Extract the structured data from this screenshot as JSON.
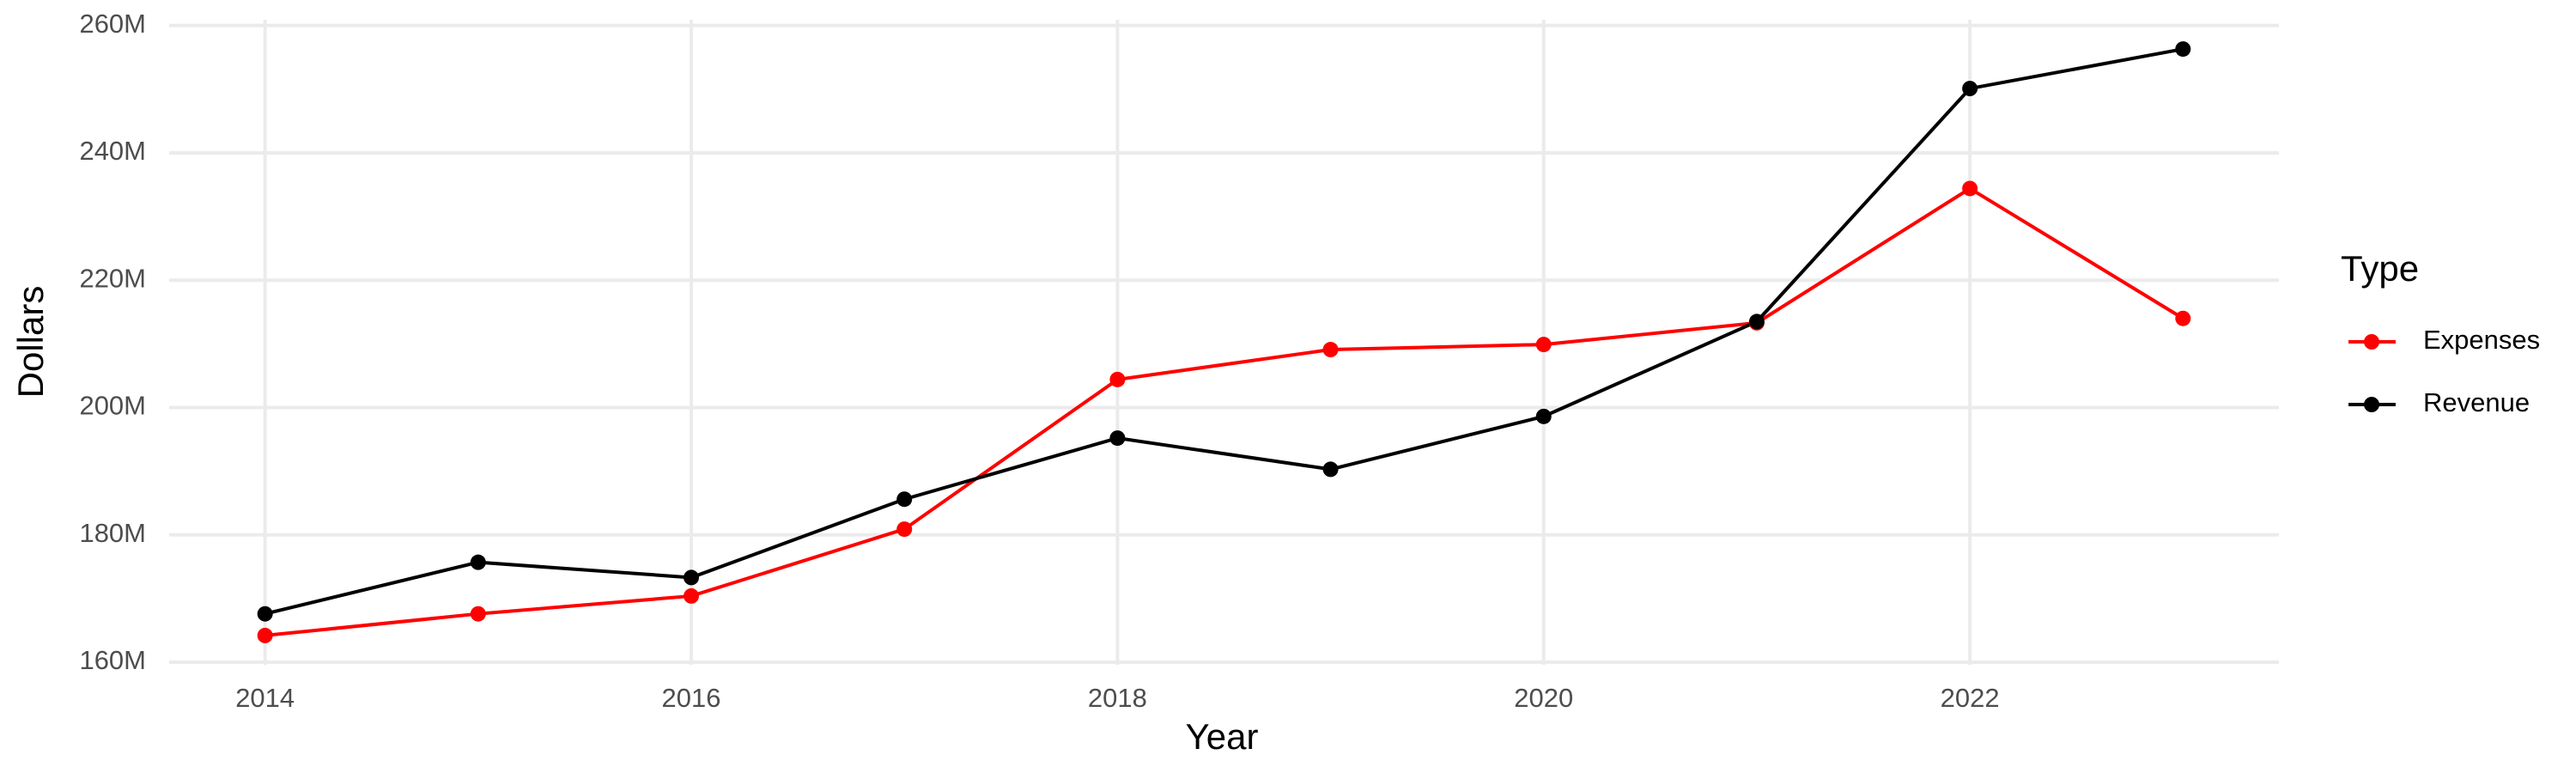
{
  "chart_data": {
    "type": "line",
    "x_label": "Year",
    "y_label": "Dollars",
    "x": [
      2014,
      2015,
      2016,
      2017,
      2018,
      2019,
      2020,
      2021,
      2022,
      2023
    ],
    "series": [
      {
        "name": "Expenses",
        "color": "#ff0000",
        "values": [
          164200000,
          167600000,
          170400000,
          180900000,
          204400000,
          209100000,
          209900000,
          213300000,
          234400000,
          214000000
        ]
      },
      {
        "name": "Revenue",
        "color": "#000000",
        "values": [
          167600000,
          175700000,
          173300000,
          185600000,
          195200000,
          190300000,
          198600000,
          213500000,
          250100000,
          256300000
        ]
      }
    ],
    "xlim": [
      2013.55,
      2023.45
    ],
    "xticks": [
      2014,
      2016,
      2018,
      2020,
      2022
    ],
    "ylim": [
      159600000,
      260900000
    ],
    "yticks": [
      {
        "value": 160000000,
        "label": "160M"
      },
      {
        "value": 180000000,
        "label": "180M"
      },
      {
        "value": 200000000,
        "label": "200M"
      },
      {
        "value": 220000000,
        "label": "220M"
      },
      {
        "value": 240000000,
        "label": "240M"
      },
      {
        "value": 260000000,
        "label": "260M"
      }
    ],
    "grid": true,
    "legend_title": "Type",
    "legend_position": "right"
  }
}
